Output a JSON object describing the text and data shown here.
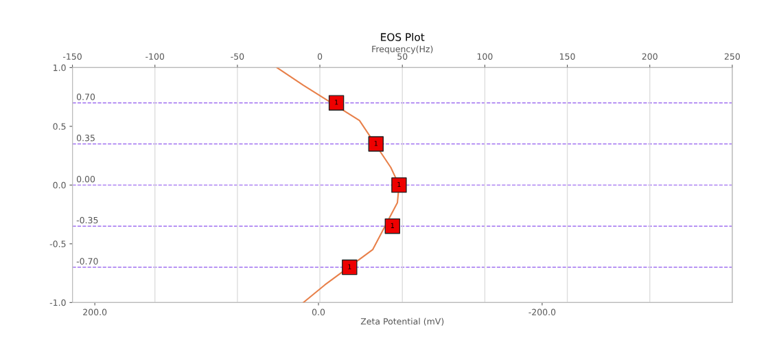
{
  "chart_data": {
    "type": "scatter",
    "title": "EOS Plot",
    "xlabel": "Zeta Potential (mV)",
    "x2label": "Frequency(Hz)",
    "xlim": [
      220,
      -370
    ],
    "xticks": [
      {
        "value": 200,
        "label": "200.0"
      },
      {
        "value": 0,
        "label": "0.0"
      },
      {
        "value": -200,
        "label": "-200.0"
      }
    ],
    "x2lim": [
      -150,
      250
    ],
    "x2ticks": [
      -150,
      -100,
      -50,
      0,
      50,
      100,
      150,
      200,
      250
    ],
    "ylim": [
      -1.0,
      1.0
    ],
    "yticks": [
      {
        "value": 1.0,
        "label": "1.0"
      },
      {
        "value": 0.5,
        "label": "0.5"
      },
      {
        "value": 0.0,
        "label": "0.0"
      },
      {
        "value": -0.5,
        "label": "-0.5"
      },
      {
        "value": -1.0,
        "label": "-1.0"
      }
    ],
    "grid": "x",
    "series": [
      {
        "type": "line",
        "axis": "x2",
        "color": "#e8804a",
        "marker": "none",
        "line_style": "solid",
        "x": [
          -26,
          -10,
          24,
          43,
          48,
          47,
          32,
          3,
          -10
        ],
        "values": [
          1.0,
          0.85,
          0.55,
          0.15,
          0.0,
          -0.15,
          -0.55,
          -0.85,
          -1.0
        ]
      },
      {
        "name": "1",
        "axis": "x2",
        "color": "#ee0000",
        "marker": "square",
        "x": [
          10,
          34,
          48,
          44,
          18
        ],
        "values": [
          0.7,
          0.35,
          0.0,
          -0.35,
          -0.7
        ]
      }
    ],
    "ref_lines": [
      {
        "axis": "y",
        "value": 0.7,
        "label": "0.70",
        "color": "#a070f0",
        "line_style": "dashed"
      },
      {
        "axis": "y",
        "value": 0.35,
        "label": "0.35",
        "color": "#a070f0",
        "line_style": "dashed"
      },
      {
        "axis": "y",
        "value": 0.0,
        "label": "0.00",
        "color": "#a070f0",
        "line_style": "dashed"
      },
      {
        "axis": "y",
        "value": -0.35,
        "label": "-0.35",
        "color": "#a070f0",
        "line_style": "dashed"
      },
      {
        "axis": "y",
        "value": -0.7,
        "label": "-0.70",
        "color": "#a070f0",
        "line_style": "dashed"
      }
    ]
  }
}
